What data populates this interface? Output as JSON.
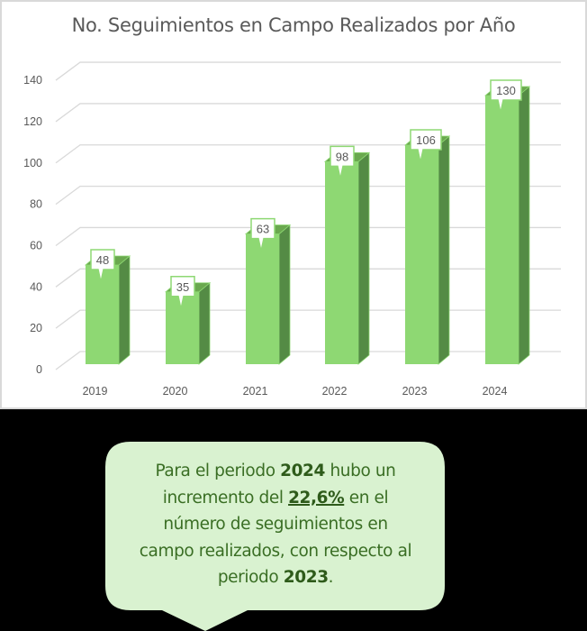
{
  "chart_data": {
    "type": "bar",
    "style": "3d-column",
    "title": "No. Seguimientos en Campo Realizados por Año",
    "categories": [
      "2019",
      "2020",
      "2021",
      "2022",
      "2023",
      "2024"
    ],
    "values": [
      48,
      35,
      63,
      98,
      106,
      130
    ],
    "xlabel": "",
    "ylabel": "",
    "ylim": [
      0,
      140
    ],
    "yticks": [
      0,
      20,
      40,
      60,
      80,
      100,
      120,
      140
    ],
    "grid": true,
    "legend": null,
    "data_labels": true,
    "colors": {
      "bar_front": "#8ed873",
      "bar_top": "#6aa84f",
      "bar_side": "#548b45",
      "label_border": "#8ed873",
      "gridline": "#d9d9d9",
      "text": "#595959"
    }
  },
  "callout": {
    "line1_pre": "Para el periodo ",
    "line1_bold": "2024",
    "line1_post": " hubo un",
    "line2_pre": "incremento del ",
    "line2_bold": "22,6%",
    "line2_post": " en el",
    "line3": "número de seguimientos en",
    "line4": "campo realizados, con respecto al",
    "line5_pre": "periodo ",
    "line5_bold": "2023",
    "line5_post": ".",
    "background": "#d9f2d0",
    "text_color": "#3a6e24"
  }
}
